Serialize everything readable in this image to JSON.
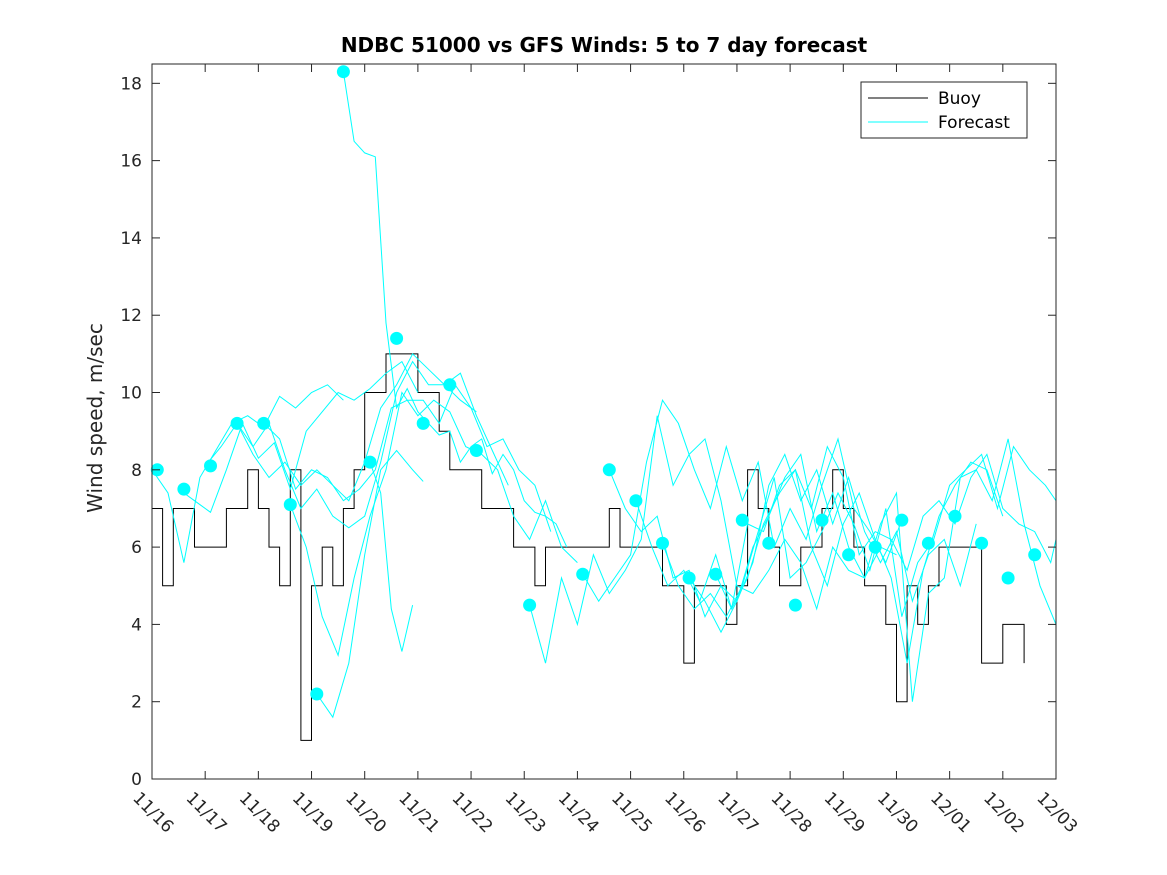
{
  "chart_data": {
    "type": "line",
    "title": "NDBC 51000 vs GFS Winds: 5 to 7 day forecast",
    "xlabel": "",
    "ylabel": "Wind speed, m/sec",
    "xlim": [
      0,
      17
    ],
    "ylim": [
      0,
      18.5
    ],
    "x_unit": "days since 11/16",
    "xticks": [
      {
        "value": 0,
        "label": "11/16"
      },
      {
        "value": 1,
        "label": "11/17"
      },
      {
        "value": 2,
        "label": "11/18"
      },
      {
        "value": 3,
        "label": "11/19"
      },
      {
        "value": 4,
        "label": "11/20"
      },
      {
        "value": 5,
        "label": "11/21"
      },
      {
        "value": 6,
        "label": "11/22"
      },
      {
        "value": 7,
        "label": "11/23"
      },
      {
        "value": 8,
        "label": "11/24"
      },
      {
        "value": 9,
        "label": "11/25"
      },
      {
        "value": 10,
        "label": "11/26"
      },
      {
        "value": 11,
        "label": "11/27"
      },
      {
        "value": 12,
        "label": "11/28"
      },
      {
        "value": 13,
        "label": "11/29"
      },
      {
        "value": 14,
        "label": "11/30"
      },
      {
        "value": 15,
        "label": "12/01"
      },
      {
        "value": 16,
        "label": "12/02"
      },
      {
        "value": 17,
        "label": "12/03"
      }
    ],
    "yticks": [
      {
        "value": 0,
        "label": "0"
      },
      {
        "value": 2,
        "label": "2"
      },
      {
        "value": 4,
        "label": "4"
      },
      {
        "value": 6,
        "label": "6"
      },
      {
        "value": 8,
        "label": "8"
      },
      {
        "value": 10,
        "label": "10"
      },
      {
        "value": 12,
        "label": "12"
      },
      {
        "value": 14,
        "label": "14"
      },
      {
        "value": 16,
        "label": "16"
      },
      {
        "value": 18,
        "label": "18"
      }
    ],
    "legend": {
      "position": "top-right",
      "entries": [
        "Buoy",
        "Forecast"
      ]
    },
    "colors": {
      "buoy": "#000000",
      "forecast": "#00ffff",
      "axes": "#262626"
    },
    "buoy": {
      "name": "Buoy",
      "x": [
        0.0,
        0.2,
        0.4,
        0.6,
        0.8,
        1.0,
        1.2,
        1.4,
        1.6,
        1.8,
        2.0,
        2.2,
        2.4,
        2.6,
        2.8,
        3.0,
        3.2,
        3.4,
        3.6,
        3.8,
        4.0,
        4.2,
        4.4,
        4.6,
        4.8,
        5.0,
        5.2,
        5.4,
        5.6,
        5.8,
        6.0,
        6.2,
        6.4,
        6.6,
        6.8,
        7.0,
        7.2,
        7.4,
        7.6,
        7.8,
        8.0,
        8.2,
        8.4,
        8.6,
        8.8,
        9.0,
        9.2,
        9.4,
        9.6,
        9.8,
        10.0,
        10.2,
        10.4,
        10.6,
        10.8,
        11.0,
        11.2,
        11.4,
        11.6,
        11.8,
        12.0,
        12.2,
        12.4,
        12.6,
        12.8,
        13.0,
        13.2,
        13.4,
        13.6,
        13.8,
        14.0,
        14.2,
        14.4,
        14.6,
        14.8,
        15.0,
        15.2,
        15.4,
        15.6,
        15.8,
        16.0,
        16.2,
        16.4
      ],
      "values": [
        7,
        5,
        7,
        7,
        6,
        6,
        6,
        7,
        7,
        8,
        7,
        6,
        5,
        8,
        1,
        5,
        6,
        5,
        7,
        8,
        10,
        10,
        11,
        11,
        11,
        10,
        10,
        9,
        8,
        8,
        8,
        7,
        7,
        7,
        6,
        6,
        5,
        6,
        6,
        6,
        6,
        6,
        6,
        7,
        6,
        6,
        6,
        6,
        5,
        5,
        3,
        5,
        5,
        5,
        4,
        5,
        8,
        7,
        6,
        5,
        5,
        6,
        6,
        7,
        8,
        7,
        6,
        5,
        5,
        4,
        2,
        5,
        4,
        5,
        6,
        6,
        6,
        6,
        3,
        3,
        4,
        4,
        3
      ]
    },
    "forecast_markers": {
      "name": "Forecast initial points",
      "x": [
        0.1,
        0.6,
        1.1,
        1.6,
        2.1,
        2.6,
        3.1,
        3.6,
        4.1,
        4.6,
        5.1,
        5.6,
        6.1,
        7.1,
        8.1,
        8.6,
        9.1,
        9.6,
        10.1,
        10.6,
        11.1,
        11.6,
        12.1,
        12.6,
        13.1,
        13.6,
        14.1,
        14.6,
        15.1,
        15.6,
        16.1,
        16.6
      ],
      "values": [
        8.0,
        7.5,
        8.1,
        9.2,
        9.2,
        7.1,
        2.2,
        18.3,
        8.2,
        11.4,
        9.2,
        10.2,
        8.5,
        4.5,
        5.3,
        8.0,
        7.2,
        6.1,
        5.2,
        5.3,
        6.7,
        6.1,
        4.5,
        6.7,
        5.8,
        6.0,
        6.7,
        6.1,
        6.8,
        6.1,
        5.2,
        5.8
      ]
    },
    "forecast_series": [
      {
        "name": "Forecast",
        "x": [
          0.0,
          0.3,
          0.6,
          0.9,
          1.2,
          1.5,
          1.8,
          2.1,
          2.4,
          2.7,
          3.0,
          3.3,
          3.6
        ],
        "values": [
          8.0,
          7.4,
          5.6,
          7.8,
          8.5,
          9.2,
          9.4,
          9.1,
          9.9,
          9.6,
          10.0,
          10.2,
          9.8
        ]
      },
      {
        "name": "Forecast",
        "x": [
          0.5,
          0.8,
          1.1,
          1.4,
          1.7,
          2.0,
          2.3,
          2.6,
          2.9,
          3.2,
          3.5,
          3.8,
          4.1,
          4.4,
          4.7,
          5.0
        ],
        "values": [
          7.5,
          7.2,
          6.9,
          8.0,
          9.2,
          8.3,
          8.7,
          7.5,
          9.0,
          9.5,
          10.0,
          9.8,
          10.1,
          10.5,
          10.8,
          10.0
        ]
      },
      {
        "name": "Forecast",
        "x": [
          1.0,
          1.3,
          1.6,
          1.9,
          2.2,
          2.5,
          2.8,
          3.1,
          3.4,
          3.7,
          4.0,
          4.3,
          4.6,
          4.9,
          5.2,
          5.5,
          5.8,
          6.1
        ],
        "values": [
          8.1,
          8.6,
          9.2,
          8.4,
          7.8,
          8.2,
          7.6,
          8.0,
          7.6,
          7.2,
          8.2,
          9.6,
          10.2,
          11.0,
          10.6,
          10.2,
          9.8,
          9.5
        ]
      },
      {
        "name": "Forecast",
        "x": [
          1.6,
          1.9,
          2.2,
          2.5,
          2.8,
          3.1,
          3.4,
          3.7,
          4.0,
          4.3,
          4.6,
          4.9,
          5.2,
          5.5,
          5.8,
          6.1,
          6.4,
          6.7
        ],
        "values": [
          9.2,
          8.6,
          9.2,
          8.0,
          7.0,
          7.5,
          6.8,
          6.5,
          6.8,
          8.2,
          10.0,
          10.8,
          10.2,
          10.2,
          10.5,
          9.4,
          8.5,
          7.6
        ]
      },
      {
        "name": "Forecast",
        "x": [
          2.1,
          2.4,
          2.7,
          3.0,
          3.3,
          3.6,
          3.9,
          4.2,
          4.5,
          4.8,
          5.1,
          5.4,
          5.7,
          6.0,
          6.3,
          6.6,
          6.9,
          7.2,
          7.5
        ],
        "values": [
          9.2,
          8.8,
          7.5,
          8.0,
          7.8,
          7.2,
          7.5,
          8.0,
          9.6,
          9.8,
          9.8,
          9.2,
          10.2,
          9.6,
          8.6,
          8.8,
          8.0,
          7.6,
          6.4
        ]
      },
      {
        "name": "Forecast",
        "x": [
          2.6,
          2.9,
          3.2,
          3.5,
          3.8,
          4.1,
          4.4,
          4.7,
          5.0,
          5.3,
          5.6,
          5.9,
          6.2,
          6.5,
          6.8,
          7.1,
          7.4,
          7.7,
          8.0
        ],
        "values": [
          7.1,
          6.0,
          4.2,
          3.2,
          5.2,
          6.8,
          8.0,
          10.0,
          9.4,
          9.8,
          9.5,
          8.6,
          8.4,
          8.0,
          6.8,
          6.2,
          7.2,
          6.0,
          5.6
        ]
      },
      {
        "name": "Forecast",
        "x": [
          3.1,
          3.4,
          3.7,
          4.0,
          4.3,
          4.6,
          4.9,
          5.1
        ],
        "values": [
          2.2,
          1.6,
          3.0,
          5.8,
          8.0,
          8.5,
          8.0,
          7.7
        ]
      },
      {
        "name": "Forecast",
        "x": [
          3.6,
          3.8,
          4.0,
          4.2,
          4.4,
          4.6,
          4.8,
          5.0,
          5.2,
          5.4,
          5.6,
          5.8,
          6.0,
          6.2,
          6.4,
          6.6,
          6.8,
          7.0,
          7.2,
          7.4,
          7.6,
          7.8
        ],
        "values": [
          18.3,
          16.5,
          16.2,
          16.1,
          11.8,
          9.6,
          10.1,
          9.5,
          9.2,
          8.9,
          9.0,
          8.2,
          8.6,
          8.8,
          7.9,
          8.4,
          8.0,
          7.2,
          6.9,
          6.8,
          6.6,
          6.0
        ]
      },
      {
        "name": "Forecast",
        "x": [
          4.1,
          4.3,
          4.5,
          4.7,
          4.9
        ],
        "values": [
          8.2,
          7.4,
          4.4,
          3.3,
          4.5
        ]
      },
      {
        "name": "Forecast",
        "x": [
          7.1,
          7.4,
          7.7,
          8.0,
          8.3,
          8.6,
          8.9,
          9.2,
          9.5,
          9.8,
          10.1,
          10.4,
          10.7,
          11.0,
          11.3,
          11.6,
          11.9,
          12.2,
          12.5,
          12.8,
          13.1,
          13.4,
          13.7,
          14.0
        ],
        "values": [
          4.5,
          3.0,
          5.2,
          4.0,
          5.8,
          4.8,
          5.4,
          6.2,
          9.4,
          7.6,
          8.4,
          8.8,
          7.2,
          5.0,
          4.8,
          5.4,
          6.2,
          5.6,
          4.4,
          6.0,
          5.4,
          5.2,
          6.0,
          5.8
        ]
      },
      {
        "name": "Forecast",
        "x": [
          8.1,
          8.4,
          8.7,
          9.0,
          9.3,
          9.6,
          9.9,
          10.2,
          10.5,
          10.8,
          11.1,
          11.4,
          11.7,
          12.0,
          12.3,
          12.6,
          12.9,
          13.2,
          13.5,
          13.8,
          14.1
        ],
        "values": [
          5.3,
          4.6,
          5.2,
          5.8,
          8.2,
          9.8,
          9.2,
          8.0,
          7.0,
          8.6,
          7.2,
          8.2,
          6.0,
          7.0,
          6.2,
          7.6,
          8.8,
          7.0,
          6.4,
          5.6,
          6.7
        ]
      },
      {
        "name": "Forecast",
        "x": [
          8.6,
          8.9,
          9.2,
          9.5,
          9.8,
          10.1,
          10.4,
          10.7,
          11.0,
          11.3,
          11.6,
          11.9,
          12.2,
          12.5,
          12.8,
          13.1,
          13.4,
          13.7,
          14.0,
          14.3,
          14.6,
          14.9,
          15.2,
          15.5
        ],
        "values": [
          8.0,
          7.0,
          6.4,
          6.8,
          5.2,
          5.4,
          4.2,
          5.0,
          4.6,
          5.6,
          7.6,
          8.4,
          7.2,
          8.0,
          6.6,
          7.8,
          6.4,
          5.6,
          6.4,
          4.6,
          5.8,
          6.2,
          5.0,
          6.6
        ]
      },
      {
        "name": "Forecast",
        "x": [
          9.1,
          9.4,
          9.7,
          10.0,
          10.3,
          10.6,
          10.9,
          11.2,
          11.5,
          11.8,
          12.1,
          12.4,
          12.7,
          13.0,
          13.3,
          13.6,
          13.9,
          14.2,
          14.5,
          14.8,
          15.1,
          15.4,
          15.7,
          16.0
        ],
        "values": [
          7.2,
          6.0,
          5.0,
          5.4,
          4.6,
          5.8,
          4.4,
          6.6,
          6.4,
          7.6,
          8.0,
          6.0,
          5.0,
          6.6,
          7.4,
          6.2,
          5.2,
          3.0,
          5.4,
          6.8,
          7.6,
          8.2,
          8.0,
          6.8
        ]
      },
      {
        "name": "Forecast",
        "x": [
          9.6,
          9.9,
          10.2,
          10.5,
          10.8,
          11.1,
          11.4,
          11.7,
          12.0,
          12.3,
          12.6,
          12.9,
          13.2,
          13.5,
          13.8,
          14.1,
          14.4,
          14.7,
          15.0,
          15.3,
          15.6,
          15.9,
          16.2,
          16.5,
          16.8,
          17.0
        ],
        "values": [
          6.1,
          5.0,
          4.4,
          4.8,
          4.2,
          5.0,
          6.4,
          7.8,
          5.2,
          5.6,
          6.4,
          7.4,
          6.6,
          5.4,
          7.0,
          4.2,
          5.6,
          6.2,
          7.6,
          8.0,
          8.4,
          7.0,
          8.6,
          8.0,
          7.6,
          7.2
        ]
      },
      {
        "name": "Forecast",
        "x": [
          10.1,
          10.4,
          10.7,
          11.0,
          11.3,
          11.6,
          11.9,
          12.2,
          12.5,
          12.8,
          13.1,
          13.4,
          13.7,
          14.0,
          14.3,
          14.6,
          14.9,
          15.2,
          15.5,
          15.8,
          16.1,
          16.4,
          16.7,
          17.0
        ],
        "values": [
          5.2,
          4.6,
          3.8,
          4.6,
          6.0,
          6.8,
          7.8,
          8.4,
          6.4,
          7.4,
          6.0,
          5.2,
          6.6,
          7.4,
          2.0,
          4.8,
          5.2,
          7.8,
          8.0,
          7.2,
          8.8,
          6.6,
          5.0,
          4.0
        ]
      },
      {
        "name": "Forecast",
        "x": [
          10.6,
          10.9,
          11.2,
          11.5,
          11.8,
          12.1,
          12.4,
          12.7,
          13.0,
          13.3,
          13.6,
          13.9,
          14.2,
          14.5,
          14.8,
          15.1,
          15.4,
          15.7,
          16.0,
          16.3,
          16.6,
          16.9,
          17.0
        ],
        "values": [
          5.3,
          4.4,
          5.2,
          6.6,
          7.4,
          8.0,
          7.0,
          8.6,
          7.8,
          5.8,
          6.4,
          6.2,
          5.4,
          6.8,
          7.2,
          6.6,
          7.8,
          8.4,
          7.0,
          6.6,
          6.4,
          5.6,
          6.2
        ]
      }
    ]
  }
}
